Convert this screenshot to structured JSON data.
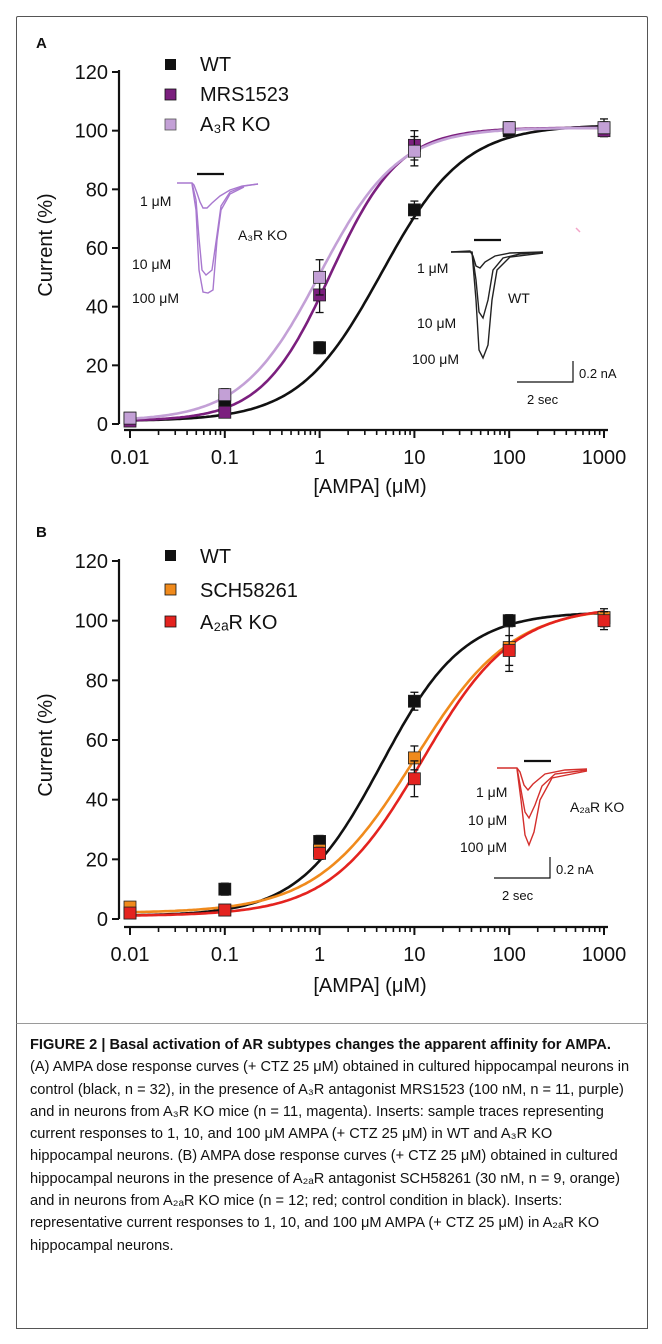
{
  "chart_data": [
    {
      "panel_label": "A",
      "type": "scatter",
      "x_scale": "log",
      "xlim": [
        0.01,
        1000
      ],
      "ylim": [
        0,
        120
      ],
      "xlabel": "[AMPA] (μM)",
      "ylabel": "Current (%)",
      "x_tick_labels": [
        "0.01",
        "0.1",
        "1",
        "10",
        "100",
        "1000"
      ],
      "y_tick_labels": [
        "0",
        "20",
        "40",
        "60",
        "80",
        "100",
        "120"
      ],
      "legend_position": "top-left",
      "series": [
        {
          "name": "WT",
          "color": "#111111",
          "x": [
            0.01,
            0.1,
            1,
            10,
            100,
            1000
          ],
          "y": [
            2,
            8,
            26,
            73,
            100,
            101
          ],
          "err": [
            1,
            2,
            2,
            3,
            1,
            3
          ],
          "fit": {
            "ec50": 4.5,
            "hill": 1.0,
            "top": 102,
            "bottom": 1
          }
        },
        {
          "name": "MRS1523",
          "color": "#7b1f7e",
          "x": [
            0.01,
            0.1,
            1,
            10,
            100,
            1000
          ],
          "y": [
            1,
            4,
            44,
            95,
            101,
            100
          ],
          "err": [
            1,
            1,
            6,
            5,
            2,
            2
          ],
          "fit": {
            "ec50": 1.3,
            "hill": 1.2,
            "top": 101,
            "bottom": 1
          }
        },
        {
          "name": "A₃R KO",
          "color": "#c3a0d6",
          "x": [
            0.01,
            0.1,
            1,
            10,
            100,
            1000
          ],
          "y": [
            2,
            10,
            50,
            93,
            101,
            101
          ],
          "err": [
            1,
            2,
            6,
            5,
            2,
            2
          ],
          "fit": {
            "ec50": 1.0,
            "hill": 1.05,
            "top": 101,
            "bottom": 1
          }
        }
      ],
      "inset_left": {
        "color": "#a878cf",
        "labels": [
          "1 μM",
          "10 μM",
          "100 μM"
        ],
        "name": "A₃R KO"
      },
      "inset_right": {
        "color": "#111111",
        "labels": [
          "1 μM",
          "10 μM",
          "100 μM"
        ],
        "name": "WT"
      },
      "scale_bar": {
        "y_label": "0.2 nA",
        "x_label": "2 sec"
      }
    },
    {
      "panel_label": "B",
      "type": "scatter",
      "x_scale": "log",
      "xlim": [
        0.01,
        1000
      ],
      "ylim": [
        0,
        120
      ],
      "xlabel": "[AMPA] (μM)",
      "ylabel": "Current (%)",
      "x_tick_labels": [
        "0.01",
        "0.1",
        "1",
        "10",
        "100",
        "1000"
      ],
      "y_tick_labels": [
        "0",
        "20",
        "40",
        "60",
        "80",
        "100",
        "120"
      ],
      "legend_position": "top-left",
      "series": [
        {
          "name": "WT",
          "color": "#111111",
          "x": [
            0.01,
            0.1,
            1,
            10,
            100,
            1000
          ],
          "y": [
            2,
            10,
            26,
            73,
            100,
            101
          ],
          "err": [
            1,
            2,
            2,
            3,
            2,
            3
          ],
          "fit": {
            "ec50": 4.5,
            "hill": 1.0,
            "top": 103,
            "bottom": 1
          }
        },
        {
          "name": "SCH58261",
          "color": "#f08a1c",
          "x": [
            0.01,
            0.1,
            1,
            10,
            100,
            1000
          ],
          "y": [
            4,
            3,
            23,
            54,
            91,
            101
          ],
          "err": [
            1,
            1,
            2,
            4,
            8,
            2
          ],
          "fit": {
            "ec50": 10,
            "hill": 0.85,
            "top": 105,
            "bottom": 2
          }
        },
        {
          "name": "A₂ₐR KO",
          "color": "#e4231f",
          "x": [
            0.01,
            0.1,
            1,
            10,
            100,
            1000
          ],
          "y": [
            2,
            3,
            22,
            47,
            90,
            100
          ],
          "err": [
            1,
            1,
            2,
            6,
            5,
            3
          ],
          "fit": {
            "ec50": 12,
            "hill": 0.9,
            "top": 105,
            "bottom": 1
          }
        }
      ],
      "inset": {
        "color": "#d42f2c",
        "labels": [
          "1 μM",
          "10 μM",
          "100 μM"
        ],
        "name": "A₂ₐR KO"
      },
      "scale_bar": {
        "y_label": "0.2 nA",
        "x_label": "2 sec"
      }
    }
  ],
  "legendA": {
    "wt": "WT",
    "mrs": "MRS1523",
    "a3": "A₃R KO"
  },
  "legendB": {
    "wt": "WT",
    "sch": "SCH58261",
    "a2a": "A₂ₐR KO"
  },
  "caption": {
    "title": "FIGURE 2 | Basal activation of AR subtypes changes the apparent affinity for AMPA.",
    "body": "(A) AMPA dose response curves (+ CTZ 25 μM) obtained in cultured hippocampal neurons in control (black, n = 32), in the presence of A₃R antagonist MRS1523 (100 nM, n = 11, purple) and in neurons from A₃R KO mice (n = 11, magenta). Inserts: sample traces representing current responses to 1, 10, and 100 μM AMPA (+ CTZ 25 μM) in WT and A₃R KO hippocampal neurons. (B) AMPA dose response curves (+ CTZ 25 μM) obtained in cultured hippocampal neurons in the presence of A₂ₐR antagonist SCH58261 (30 nM, n = 9, orange) and in neurons from A₂ₐR KO mice (n = 12; red; control condition in black). Inserts: representative current responses to 1, 10, and 100 μM AMPA (+ CTZ 25 μM) in A₂ₐR KO hippocampal neurons."
  }
}
